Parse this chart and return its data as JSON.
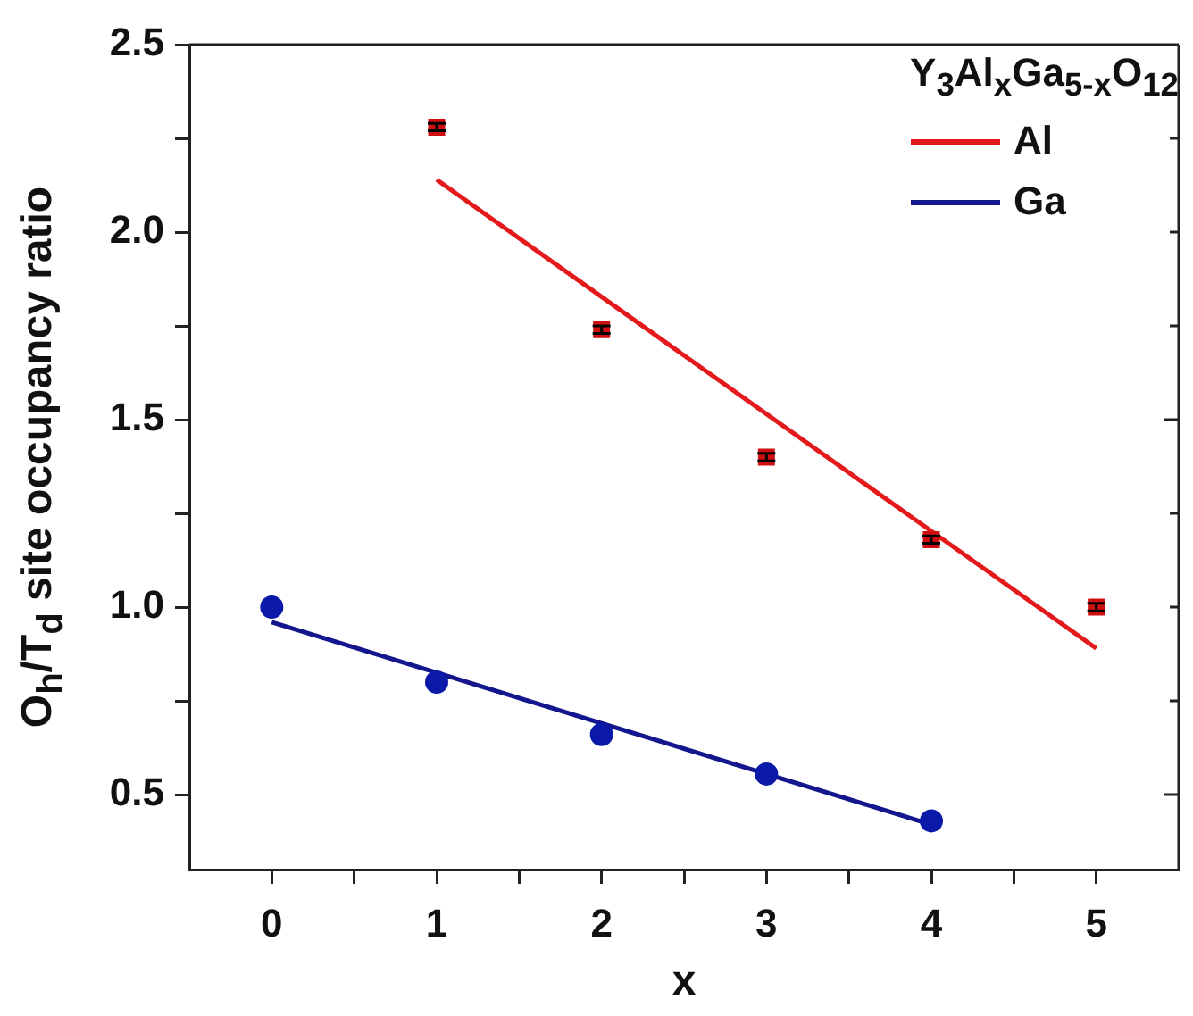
{
  "chart_data": {
    "type": "scatter",
    "xlabel": "x",
    "ylabel": "O$_{h}$/T$_{d}$ site occupancy ratio",
    "legend_title": "Y$_{3}$Al$_{x}$Ga$_{5-x}$O$_{12}$",
    "xlim": [
      -0.5,
      5.5
    ],
    "ylim": [
      0.3,
      2.5
    ],
    "xticks": [
      0,
      {
        "value": 0.5,
        "label": null
      },
      1,
      {
        "value": 1.5,
        "label": null
      },
      2,
      {
        "value": 2.5,
        "label": null
      },
      3,
      {
        "value": 3.5,
        "label": null
      },
      4,
      {
        "value": 4.5,
        "label": null
      },
      5
    ],
    "yticks": [
      0.5,
      {
        "value": 0.75,
        "label": null
      },
      {
        "value": 1,
        "label": "1.0"
      },
      {
        "value": 1.25,
        "label": null
      },
      1.5,
      {
        "value": 1.75,
        "label": null
      },
      {
        "value": 2,
        "label": "2.0"
      },
      {
        "value": 2.25,
        "label": null
      },
      2.5
    ],
    "grid": false,
    "legend": "top right",
    "series": [
      {
        "type": "scatter",
        "color": "#d01010",
        "marker": "square",
        "x": [
          1,
          2,
          3,
          4,
          5
        ],
        "values": [
          2.28,
          1.74,
          1.4,
          1.18,
          1.0
        ],
        "errors": [
          0.01,
          0.01,
          0.01,
          0.01,
          0.01
        ]
      },
      {
        "type": "line",
        "name": "Al",
        "color": "#e3191c",
        "marker": "none",
        "x": [
          1,
          5
        ],
        "values": [
          2.14,
          0.89
        ]
      },
      {
        "type": "scatter",
        "color": "#0a19a8",
        "marker": "circle",
        "x": [
          0,
          1,
          2,
          3,
          4
        ],
        "values": [
          1.0,
          0.8,
          0.66,
          0.555,
          0.43
        ]
      },
      {
        "type": "line",
        "name": "Ga",
        "color": "#13168c",
        "marker": "none",
        "x": [
          0,
          4
        ],
        "values": [
          0.96,
          0.42
        ]
      }
    ]
  }
}
